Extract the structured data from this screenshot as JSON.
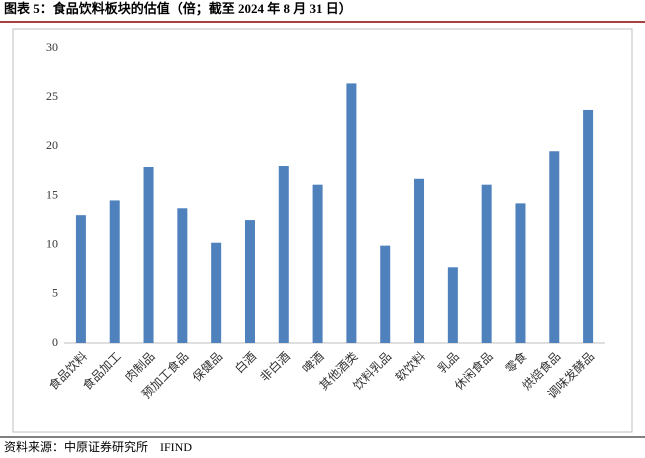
{
  "chart_data": {
    "type": "bar",
    "title": "图表 5：食品饮料板块的估值（倍；截至 2024 年 8 月 31 日）",
    "source": "资料来源：中原证券研究所　IFIND",
    "categories": [
      "食品饮料",
      "食品加工",
      "肉制品",
      "预加工食品",
      "保健品",
      "白酒",
      "非白酒",
      "啤酒",
      "其他酒类",
      "饮料乳品",
      "软饮料",
      "乳品",
      "休闲食品",
      "零食",
      "烘焙食品",
      "调味发酵品"
    ],
    "values": [
      13.0,
      14.5,
      17.9,
      13.7,
      10.2,
      12.5,
      18.0,
      16.1,
      26.4,
      9.9,
      16.7,
      7.7,
      16.1,
      14.2,
      19.5,
      23.7
    ],
    "color": "#4f81bd",
    "ylim": [
      0,
      30
    ],
    "yticks": [
      0,
      5,
      10,
      15,
      20,
      25,
      30
    ],
    "grid": false
  }
}
